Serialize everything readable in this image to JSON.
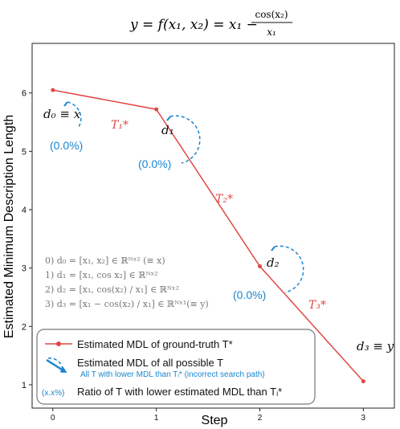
{
  "title": "y = f(x₁, x₂) = x₁ − cos(x₂) / x₁",
  "title_parts": {
    "lhs": "y = f(x₁, x₂) = x₁ − ",
    "num": "cos(x₂)",
    "den": "x₁"
  },
  "chart_data": {
    "type": "line",
    "xlabel": "Step",
    "ylabel": "Estimated Minimum Description Length",
    "xlim": [
      -0.2,
      3.3
    ],
    "ylim": [
      0.6,
      6.85
    ],
    "xticks": [
      "0",
      "1",
      "2",
      "3"
    ],
    "yticks": [
      "1",
      "2",
      "3",
      "4",
      "5",
      "6"
    ],
    "grid": false,
    "legend_position": "bottom-left",
    "series": [
      {
        "name": "Estimated MDL of ground-truth T*",
        "x": [
          0,
          1,
          2,
          3
        ],
        "y": [
          6.05,
          5.72,
          3.03,
          1.06
        ],
        "color": "#e04848"
      }
    ],
    "point_labels": [
      "d₀ ≡ x",
      "d₁",
      "d₂",
      "d₃ ≡ y"
    ],
    "segment_labels": [
      "T₁*",
      "T₂*",
      "T₃*"
    ],
    "ratios": [
      "(0.0%)",
      "(0.0%)",
      "(0.0%)"
    ],
    "definitions": [
      "0) d₀ = [x₁, x₂] ∈ ℝᴺˣ² (≡ x)",
      "1) d₁ = [x₁, cos x₂] ∈ ℝᴺˣ²",
      "2) d₂ = [x₁, cos(x₂) / x₁] ∈ ℝᴺˣ²",
      "3) d₃ = [x₁ − cos(x₂) / x₁] ∈ ℝᴺˣ¹(≡ y)"
    ],
    "legend": {
      "ground_truth": "Estimated MDL of ground-truth T*",
      "possible": "Estimated MDL of all possible T",
      "lower": "All T with lower MDL than Tᵢ* (incorrect search path)",
      "ratio_symbol": "(x.x%)",
      "ratio": "Ratio of T with lower estimated MDL than Tᵢ*"
    },
    "colors": {
      "line": "#e04848",
      "blue": "#1a86d0",
      "text": "#111111",
      "grey": "#777777"
    }
  }
}
